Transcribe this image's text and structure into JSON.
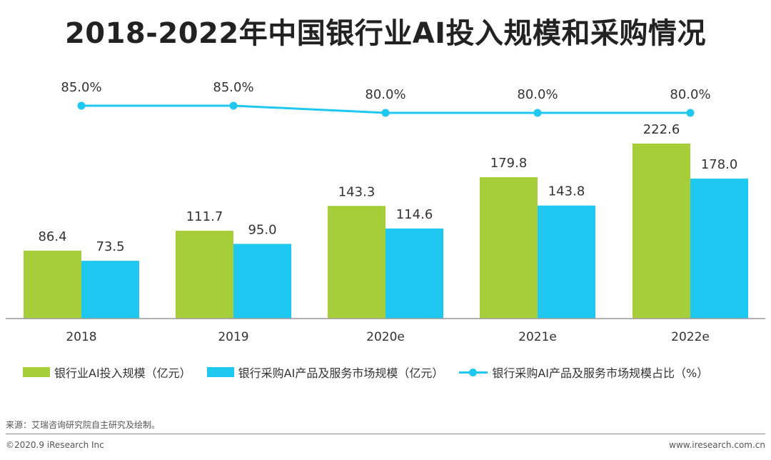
{
  "title": "2018-2022年中国银行业AI投入规模和采购情况",
  "chart_data": {
    "type": "bar+line",
    "categories": [
      "2018",
      "2019",
      "2020e",
      "2021e",
      "2022e"
    ],
    "series": [
      {
        "name": "银行业AI投入规模（亿元）",
        "type": "bar",
        "color": "#a6ce39",
        "values": [
          86.4,
          111.7,
          143.3,
          179.8,
          222.6
        ],
        "labels": [
          "86.4",
          "111.7",
          "143.3",
          "179.8",
          "222.6"
        ]
      },
      {
        "name": "银行采购AI产品及服务市场规模（亿元）",
        "type": "bar",
        "color": "#1ec8f0",
        "values": [
          73.5,
          95.0,
          114.6,
          143.8,
          178.0
        ],
        "labels": [
          "73.5",
          "95.0",
          "114.6",
          "143.8",
          "178.0"
        ]
      },
      {
        "name": "银行采购AI产品及服务市场规模占比（%）",
        "type": "line",
        "color": "#1ec8f0",
        "values": [
          85.0,
          85.0,
          80.0,
          80.0,
          80.0
        ],
        "labels": [
          "85.0%",
          "85.0%",
          "80.0%",
          "80.0%",
          "80.0%"
        ]
      }
    ],
    "legend_position": "bottom",
    "grid": false
  },
  "source": "来源：艾瑞咨询研究院自主研究及绘制。",
  "footer": {
    "left": "©2020.9 iResearch Inc",
    "right": "www.iresearch.com.cn"
  }
}
